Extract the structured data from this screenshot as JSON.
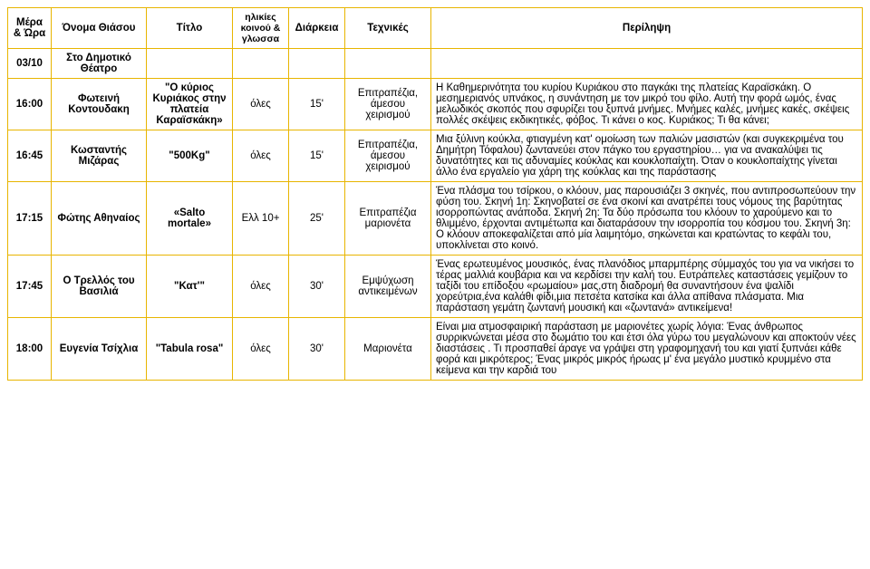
{
  "headers": {
    "time": "Μέρα & Ώρα",
    "name": "Όνομα Θιάσου",
    "title": "Τίτλο",
    "age": "ηλικίες κοινού & γλωσσα",
    "duration": "Διάρκεια",
    "techniques": "Τεχνικές",
    "summary": "Περίληψη"
  },
  "dateRow": {
    "date": "03/10",
    "venue": "Στο Δημοτικό Θέατρο"
  },
  "rows": [
    {
      "time": "16:00",
      "name": "Φωτεινή Κοντουδακη",
      "title": "\"Ο κύριος Κυριάκος στην πλατεία Καραϊσκάκη»",
      "age": "όλες",
      "duration": "15'",
      "techniques": "Επιτραπέζια, άμεσου χειρισμού",
      "summary": "Η Καθημερινότητα του κυρίου Κυριάκου στο παγκάκι της πλατείας Καραϊσκάκη. Ο μεσημεριανός υπνάκος, η συνάντηση με τον μικρό του φίλο. Αυτή την φορά ωμός, ένας μελωδικός σκοπός που σφυρίζει του ξυπνά μνήμες. Μνήμες καλές, μνήμες κακές, σκέψεις πολλές σκέψεις εκδικητικές, φόβος. Τι κάνει ο κος. Κυριάκος; Τι θα κάνει;"
    },
    {
      "time": "16:45",
      "name": "Κωσταντής Μιζάρας",
      "title": "\"500Kg\"",
      "age": "όλες",
      "duration": "15'",
      "techniques": "Επιτραπέζια, άμεσου χειρισμού",
      "summary": "Μια ξύλινη κούκλα, φτιαγμένη κατ' ομοίωση των παλιών μασιστών (και συγκεκριμένα του Δημήτρη Τόφαλου) ζωντανεύει στον πάγκο του εργαστηρίου… για να ανακαλύψει τις δυνατότητες και τις αδυναμίες κούκλας και κουκλοπαίχτη. Όταν ο κουκλοπαίχτης γίνεται άλλο ένα εργαλείο για χάρη της κούκλας και της παράστασης"
    },
    {
      "time": "17:15",
      "name": "Φώτης Αθηναίος",
      "title": "«Salto mortale»",
      "age": "Ελλ 10+",
      "duration": "25'",
      "techniques": "Επιτραπέζια μαριονέτα",
      "summary": "Ένα πλάσμα του τσίρκου, ο κλόουν, μας παρουσιάζει 3 σκηνές, που αντιπροσωπεύουν την φύση του. Σκηνή 1η: Σκηνοβατεί σε ένα σκοινί και ανατρέπει τους νόμους της βαρύτητας ισορροπώντας ανάποδα. Σκηνή 2η: Τα δύο πρόσωπα του κλόουν το χαρούμενο και το θλιμμένο, έρχονται αντιμέτωπα και διαταράσουν την ισορροπία του κόσμου του. Σκηνή 3η: Ο κλόουν αποκεφαλίζεται από μία λαιμητόμο, σηκώνεται και κρατώντας το κεφάλι του, υποκλίνεται στο κοινό."
    },
    {
      "time": "17:45",
      "name": "Ο Τρελλός του Βασιλιά",
      "title": "\"Κατ'\"",
      "age": "όλες",
      "duration": "30'",
      "techniques": "Εμψύχωση αντικειμένων",
      "summary": "Ένας ερωτευμένος μουσικός, ένας πλανόδιος μπαρμπέρης σύμμαχός του για να νικήσει το τέρας μαλλιά κουβάρια και να κερδίσει την καλή του. Ευτράπελες καταστάσεις γεμίζουν το ταξίδι του επίδοξου «ρωμαίου» μας,στη διαδρομή θα συναντήσουν ένα ψαλίδι χορεύτρια,ένα καλάθι φίδι,μια πετσέτα κατσίκα και άλλα απίθανα πλάσματα. Μια παράσταση γεμάτη ζωντανή μουσική και «ζωντανά» αντικείμενα!"
    },
    {
      "time": "18:00",
      "name": "Ευγενία Τσίχλια",
      "title": "\"Tabula rosa\"",
      "age": "όλες",
      "duration": "30'",
      "techniques": "Μαριονέτα",
      "summary": "Είναι μια ατμοσφαιρική παράσταση με μαριονέτες χωρίς λόγια:  Ένας άνθρωπος συρρικνώνεται μέσα στο δωμάτιο του και έτσι όλα γύρω του μεγαλώνουν και αποκτούν νέες διαστάσεις . Τι προσπαθεί άραγε να γράψει στη γραφομηχανή του και γιατί ξυπνάει κάθε φορά και μικρότερος; Ένας μικρός μικρός ήρωας μ' ένα μεγάλο μυστικό κρυμμένο στα κείμενα και την καρδιά του"
    }
  ]
}
